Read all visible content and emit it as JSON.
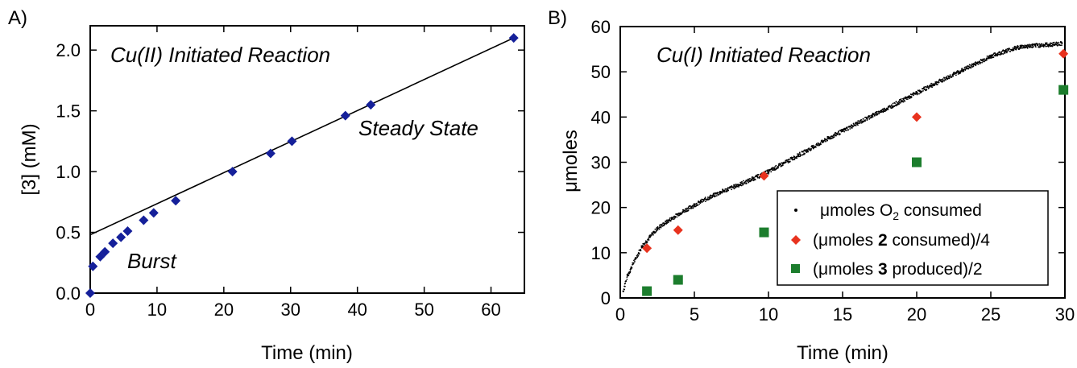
{
  "chart_data": [
    {
      "panel_label": "A)",
      "type": "scatter",
      "annotation_title": "Cu(II) Initiated Reaction",
      "annotations": [
        "Burst",
        "Steady State"
      ],
      "xlabel": "Time (min)",
      "ylabel": "[3] (mM)",
      "xlim": [
        0,
        65
      ],
      "ylim": [
        0,
        2.2
      ],
      "xticks": [
        "0",
        "10",
        "20",
        "30",
        "40",
        "50",
        "60"
      ],
      "yticks": [
        "0.0",
        "0.5",
        "1.0",
        "1.5",
        "2.0"
      ],
      "marker_color": "#15209a",
      "series": [
        {
          "marker": "diamond",
          "x": [
            0,
            0.4,
            1.5,
            2.2,
            3.4,
            4.6,
            5.6,
            8.0,
            9.5,
            12.8,
            21.3,
            27.0,
            30.2,
            38.2,
            42.0,
            63.4
          ],
          "y": [
            0.0,
            0.22,
            0.3,
            0.34,
            0.41,
            0.46,
            0.51,
            0.6,
            0.66,
            0.76,
            1.0,
            1.15,
            1.25,
            1.46,
            1.55,
            2.1
          ]
        }
      ],
      "fit_line": {
        "x": [
          0,
          63.4
        ],
        "y": [
          0.48,
          2.1
        ],
        "color": "#000000"
      },
      "grid": false
    },
    {
      "panel_label": "B)",
      "type": "scatter",
      "annotation_title": "Cu(I) Initiated Reaction",
      "xlabel": "Time (min)",
      "ylabel": "μmoles",
      "xlim": [
        0,
        30
      ],
      "ylim": [
        0,
        60
      ],
      "xticks": [
        "0",
        "5",
        "10",
        "15",
        "20",
        "25",
        "30"
      ],
      "yticks": [
        "0",
        "10",
        "20",
        "30",
        "40",
        "50",
        "60"
      ],
      "legend_position": "lower-right",
      "series": [
        {
          "legend": [
            "μmoles O",
            "2",
            " consumed"
          ],
          "marker": "dot",
          "color": "#000000",
          "x": [
            0.2,
            0.5,
            1,
            1.5,
            2,
            2.5,
            3,
            4,
            5,
            6,
            7,
            8,
            9,
            10,
            11,
            12,
            13,
            14,
            15,
            16,
            17,
            18,
            19,
            20,
            21,
            22,
            23,
            24,
            25,
            26,
            27,
            28,
            29,
            29.8
          ],
          "y": [
            1.5,
            5,
            8.5,
            11.5,
            13.5,
            15.3,
            16.5,
            18.7,
            20.5,
            22.2,
            23.7,
            25,
            26.4,
            27.9,
            29.7,
            31.5,
            33.3,
            35.2,
            36.9,
            38.6,
            40.3,
            41.9,
            43.6,
            45.3,
            47,
            48.6,
            50.2,
            51.8,
            53.4,
            54.6,
            55.5,
            55.8,
            56,
            56.3
          ]
        },
        {
          "legend": [
            "(μmoles ",
            "2",
            " consumed)/4"
          ],
          "marker": "diamond",
          "color": "#e8321e",
          "x": [
            1.8,
            3.9,
            9.7,
            20.0,
            29.9
          ],
          "y": [
            11,
            15,
            27,
            40,
            54
          ]
        },
        {
          "legend": [
            "(μmoles ",
            "3",
            " produced)/2"
          ],
          "marker": "square",
          "color": "#1c7d2d",
          "x": [
            1.8,
            3.9,
            9.7,
            20.0,
            29.9
          ],
          "y": [
            1.5,
            4,
            14.5,
            30,
            46
          ]
        }
      ],
      "grid": false
    }
  ]
}
